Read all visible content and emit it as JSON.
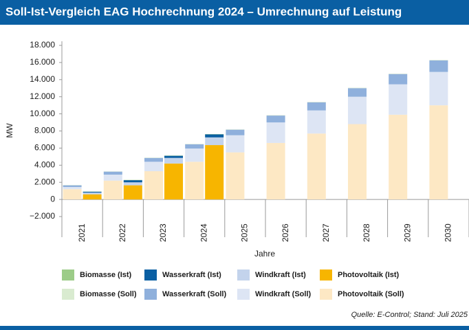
{
  "chart_data": {
    "type": "bar",
    "title": "Soll-Ist-Vergleich EAG Hochrechnung 2024 – Umrechnung auf Leistung",
    "y_label": "MW",
    "x_label": "Jahre",
    "source": "Quelle: E-Control; Stand: Juli 2025",
    "categories": [
      "2021",
      "2022",
      "2023",
      "2024",
      "2025",
      "2026",
      "2027",
      "2028",
      "2029",
      "2030"
    ],
    "ylim": [
      -2000,
      18000
    ],
    "yticks": [
      {
        "value": -2000,
        "label": "−2.000"
      },
      0,
      {
        "value": 2000,
        "label": "2.000"
      },
      {
        "value": 4000,
        "label": "4.000"
      },
      {
        "value": 6000,
        "label": "6.000"
      },
      {
        "value": 8000,
        "label": "8.000"
      },
      {
        "value": 10000,
        "label": "10.000"
      },
      {
        "value": 12000,
        "label": "12.000"
      },
      {
        "value": 14000,
        "label": "14.000"
      },
      {
        "value": 16000,
        "label": "16.000"
      },
      {
        "value": 18000,
        "label": "18.000"
      }
    ],
    "series": [
      {
        "name": "Biomasse (Ist)",
        "color": "#9ccc88",
        "values": [
          20,
          30,
          30,
          30,
          null,
          null,
          null,
          null,
          null,
          null
        ]
      },
      {
        "name": "Wasserkraft (Ist)",
        "color": "#0a5fa3",
        "values": [
          100,
          250,
          250,
          350,
          null,
          null,
          null,
          null,
          null,
          null
        ]
      },
      {
        "name": "Windkraft (Ist)",
        "color": "#c3d3ec",
        "values": [
          200,
          350,
          650,
          900,
          null,
          null,
          null,
          null,
          null,
          null
        ]
      },
      {
        "name": "Photovoltaik (Ist)",
        "color": "#f7b500",
        "values": [
          600,
          1650,
          4200,
          6350,
          null,
          null,
          null,
          null,
          null,
          null
        ]
      },
      {
        "name": "Biomasse (Soll)",
        "color": "#d9ebd0",
        "values": [
          30,
          30,
          40,
          40,
          40,
          50,
          50,
          50,
          50,
          50
        ]
      },
      {
        "name": "Wasserkraft (Soll)",
        "color": "#8fb0dc",
        "values": [
          200,
          350,
          450,
          500,
          650,
          800,
          950,
          1000,
          1200,
          1350
        ]
      },
      {
        "name": "Windkraft (Soll)",
        "color": "#dde5f4",
        "values": [
          250,
          700,
          1100,
          1550,
          2000,
          2400,
          2700,
          3200,
          3550,
          3900
        ]
      },
      {
        "name": "Photovoltaik (Soll)",
        "color": "#fde8c4",
        "values": [
          1200,
          2200,
          3300,
          4400,
          5500,
          6600,
          7700,
          8800,
          9900,
          11000
        ]
      }
    ]
  }
}
